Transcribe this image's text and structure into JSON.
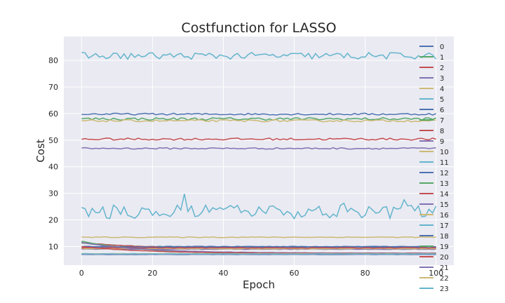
{
  "chart_data": {
    "type": "line",
    "title": "Costfunction for LASSO",
    "xlabel": "Epoch",
    "ylabel": "Cost",
    "xlim": [
      -5,
      105
    ],
    "ylim": [
      3,
      89
    ],
    "xticks": [
      0,
      20,
      40,
      60,
      80,
      100
    ],
    "yticks": [
      10,
      20,
      30,
      40,
      50,
      60,
      70,
      80
    ],
    "grid": true,
    "legend_position": "right",
    "epochs": 100,
    "series": [
      {
        "name": "0",
        "color": "#4c72b0",
        "level": 10.0,
        "start": 10.0,
        "noise": 0.1
      },
      {
        "name": "1",
        "color": "#55a868",
        "level": 9.3,
        "start": 11.3,
        "noise": 0.1
      },
      {
        "name": "2",
        "color": "#c44e52",
        "level": 9.1,
        "start": 11.5,
        "noise": 0.1
      },
      {
        "name": "3",
        "color": "#8172b2",
        "level": 9.0,
        "start": 9.0,
        "noise": 0.1
      },
      {
        "name": "4",
        "color": "#ccb974",
        "level": 9.2,
        "start": 9.2,
        "noise": 0.1
      },
      {
        "name": "5",
        "color": "#64b5cd",
        "level": 7.3,
        "start": 7.3,
        "noise": 0.05
      },
      {
        "name": "6",
        "color": "#4c72b0",
        "level": 59.8,
        "start": 59.8,
        "noise": 0.35
      },
      {
        "name": "7",
        "color": "#55a868",
        "level": 58.0,
        "start": 58.0,
        "noise": 0.5
      },
      {
        "name": "8",
        "color": "#c44e52",
        "level": 50.4,
        "start": 50.4,
        "noise": 0.4
      },
      {
        "name": "9",
        "color": "#8172b2",
        "level": 46.9,
        "start": 46.9,
        "noise": 0.3
      },
      {
        "name": "10",
        "color": "#ccb974",
        "level": 57.3,
        "start": 57.3,
        "noise": 0.4
      },
      {
        "name": "11",
        "color": "#64b5cd",
        "level": 81.7,
        "start": 81.7,
        "noise": 1.3
      },
      {
        "name": "12",
        "color": "#4c72b0",
        "level": 9.8,
        "start": 9.8,
        "noise": 0.1
      },
      {
        "name": "13",
        "color": "#55a868",
        "level": 7.1,
        "start": 12.0,
        "noise": 0.05
      },
      {
        "name": "14",
        "color": "#c44e52",
        "level": 9.5,
        "start": 9.5,
        "noise": 0.1
      },
      {
        "name": "15",
        "color": "#8172b2",
        "level": 7.5,
        "start": 11.5,
        "noise": 0.05
      },
      {
        "name": "16",
        "color": "#ccb974",
        "level": 13.5,
        "start": 13.5,
        "noise": 0.15
      },
      {
        "name": "17",
        "color": "#64b5cd",
        "level": 23.0,
        "start": 23.0,
        "noise": 2.6
      },
      {
        "name": "18",
        "color": "#4c72b0",
        "level": 7.0,
        "start": 7.0,
        "noise": 0.05
      },
      {
        "name": "19",
        "color": "#55a868",
        "level": 7.2,
        "start": 7.2,
        "noise": 0.05
      },
      {
        "name": "20",
        "color": "#c44e52",
        "level": 7.4,
        "start": 10.0,
        "noise": 0.05
      },
      {
        "name": "21",
        "color": "#8172b2",
        "level": 7.1,
        "start": 7.1,
        "noise": 0.05
      },
      {
        "name": "22",
        "color": "#ccb974",
        "level": 7.3,
        "start": 7.3,
        "noise": 0.05
      },
      {
        "name": "23",
        "color": "#64b5cd",
        "level": 7.2,
        "start": 7.2,
        "noise": 0.05
      }
    ]
  }
}
